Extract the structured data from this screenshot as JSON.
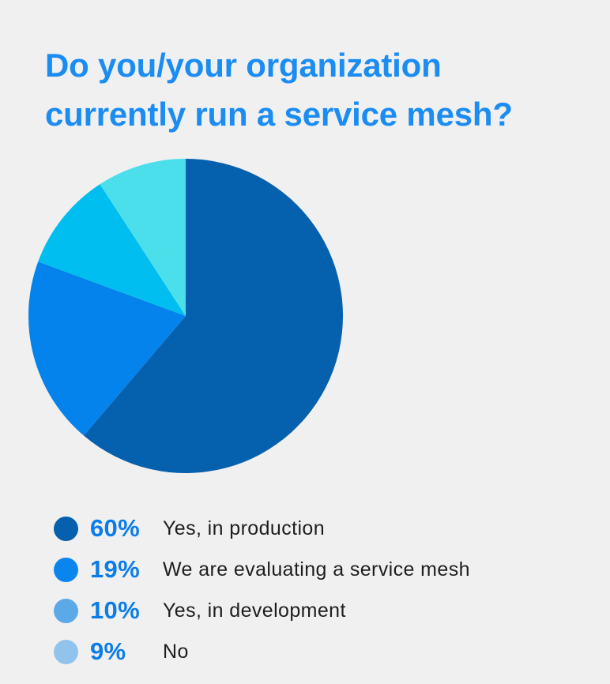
{
  "title": {
    "line1": "Do you/your organization",
    "line2": "currently run a service mesh?"
  },
  "colors": {
    "background": "#F0F0F1",
    "title_blue": "#1A8CF2",
    "percent_blue": "#0B7DE8",
    "label_dark": "#1E1E1E"
  },
  "legend": {
    "items": [
      {
        "pct": "60%",
        "label": "Yes, in production",
        "color": "#0560AD"
      },
      {
        "pct": "19%",
        "label": "We are evaluating a service mesh",
        "color": "#0B85EE"
      },
      {
        "pct": "10%",
        "label": "Yes, in development",
        "color": "#5CA9E8"
      },
      {
        "pct": "9%",
        "label": "No",
        "color": "#92C3EC"
      }
    ]
  },
  "chart_data": {
    "type": "pie",
    "title": "Do you/your organization currently run a service mesh?",
    "labels": [
      "Yes, in production",
      "We are evaluating a service mesh",
      "Yes, in development",
      "No"
    ],
    "values": [
      60,
      19,
      10,
      9
    ],
    "unit": "%",
    "slice_colors": [
      "#0560AD",
      "#0583EC",
      "#00BEEF",
      "#4BDFEC"
    ],
    "legend_dot_colors": [
      "#0560AD",
      "#0B85EE",
      "#5CA9E8",
      "#92C3EC"
    ],
    "start_angle_deg": 0,
    "direction": "clockwise",
    "legend_position": "bottom-left"
  }
}
